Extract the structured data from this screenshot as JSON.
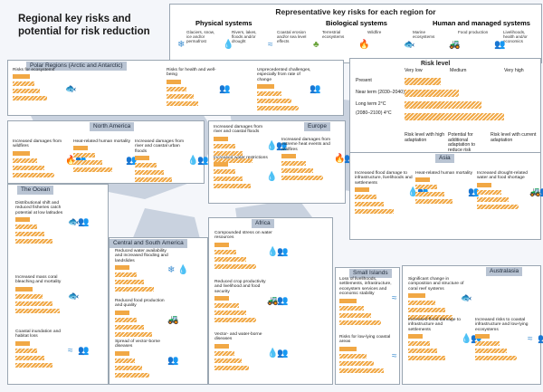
{
  "title": "Regional key risks and potential for risk reduction",
  "legend": {
    "title": "Representative key risks for each region for",
    "groups": [
      {
        "label": "Physical systems",
        "color": "#3f8fd1"
      },
      {
        "label": "Biological systems",
        "color": "#6aa33b"
      },
      {
        "label": "Human and managed systems",
        "color": "#c2102c"
      }
    ],
    "items": [
      {
        "label": "Glaciers, snow, ice and/or permafrost",
        "icon": "snowflake-icon",
        "glyph": "❄",
        "color": "#3f8fd1"
      },
      {
        "label": "Rivers, lakes, floods and/or drought",
        "icon": "droplet-icon",
        "glyph": "💧",
        "color": "#3f8fd1"
      },
      {
        "label": "Coastal erosion and/or sea level effects",
        "icon": "waves-icon",
        "glyph": "≈",
        "color": "#3f8fd1"
      },
      {
        "label": "Terrestrial ecosystems",
        "icon": "tree-icon",
        "glyph": "♣",
        "color": "#6aa33b"
      },
      {
        "label": "Wildfire",
        "icon": "flame-icon",
        "glyph": "🔥",
        "color": "#6aa33b"
      },
      {
        "label": "Marine ecosystems",
        "icon": "fish-icon",
        "glyph": "🐟",
        "color": "#6aa33b"
      },
      {
        "label": "Food production",
        "icon": "tractor-icon",
        "glyph": "🚜",
        "color": "#c2102c"
      },
      {
        "label": "Livelihoods, health and/or economics",
        "icon": "people-icon",
        "glyph": "👥",
        "color": "#c2102c"
      }
    ]
  },
  "risk_level": {
    "title": "Risk level",
    "scale": [
      "Very low",
      "Medium",
      "Very high"
    ],
    "rows": [
      "Present",
      "Near term (2030–2040)",
      "Long term 2°C",
      "(2080–2100) 4°C"
    ],
    "notes": [
      "Risk level with high adaptation",
      "Potential for additional adaptation to reduce risk",
      "Risk level with current adaptation"
    ]
  },
  "regions": [
    {
      "name": "Polar Regions (Arctic and Antarctic)",
      "risks": [
        {
          "label": "Risks for ecosystems",
          "levels": [
            0.35,
            0.45,
            0.55,
            0.7
          ],
          "icons": [
            "fish-icon"
          ]
        },
        {
          "label": "Risks for health and well-being",
          "levels": [
            0.3,
            0.4,
            0.55,
            0.65
          ],
          "icons": [
            "people-icon"
          ]
        },
        {
          "label": "Unprecedented challenges, especially from rate of change",
          "levels": [
            0.35,
            0.5,
            0.7,
            0.85
          ],
          "icons": [
            "people-icon"
          ]
        }
      ]
    },
    {
      "name": "North America",
      "risks": [
        {
          "label": "Increased damages from wildfires",
          "levels": [
            0.35,
            0.5,
            0.65,
            0.85
          ],
          "icons": [
            "flame-icon",
            "people-icon"
          ]
        },
        {
          "label": "Heat-related human mortality",
          "levels": [
            0.3,
            0.45,
            0.6,
            0.8
          ],
          "icons": [
            "people-icon"
          ]
        },
        {
          "label": "Increased damages from river and coastal urban floods",
          "levels": [
            0.3,
            0.45,
            0.6,
            0.75
          ],
          "icons": [
            "droplet-icon",
            "people-icon"
          ]
        }
      ]
    },
    {
      "name": "Europe",
      "risks": [
        {
          "label": "Increased damages from river and coastal floods",
          "levels": [
            0.3,
            0.45,
            0.6,
            0.8
          ],
          "icons": [
            "droplet-icon",
            "people-icon"
          ]
        },
        {
          "label": "Increased water restrictions",
          "levels": [
            0.3,
            0.45,
            0.6,
            0.75
          ],
          "icons": [
            "droplet-icon"
          ]
        },
        {
          "label": "Increased damages from extreme heat events and wildfires",
          "levels": [
            0.3,
            0.5,
            0.65,
            0.85
          ],
          "icons": [
            "flame-icon",
            "people-icon"
          ]
        }
      ]
    },
    {
      "name": "Asia",
      "risks": [
        {
          "label": "Increased flood damage to infrastructure, livelihoods and settlements",
          "levels": [
            0.3,
            0.45,
            0.6,
            0.8
          ],
          "icons": [
            "droplet-icon",
            "people-icon"
          ]
        },
        {
          "label": "Heat-related human mortality",
          "levels": [
            0.3,
            0.45,
            0.6,
            0.75
          ],
          "icons": [
            "people-icon"
          ]
        },
        {
          "label": "Increased drought-related water and food shortage",
          "levels": [
            0.3,
            0.5,
            0.65,
            0.85
          ],
          "icons": [
            "tractor-icon",
            "people-icon"
          ]
        }
      ]
    },
    {
      "name": "The Ocean",
      "risks": [
        {
          "label": "Distributional shift and reduced fisheries catch potential at low latitudes",
          "levels": [
            0.3,
            0.45,
            0.6,
            0.75
          ],
          "icons": [
            "fish-icon",
            "people-icon"
          ]
        },
        {
          "label": "Increased mass coral bleaching and mortality",
          "levels": [
            0.35,
            0.55,
            0.75,
            0.9
          ],
          "icons": [
            "fish-icon"
          ]
        },
        {
          "label": "Coastal inundation and habitat loss",
          "levels": [
            0.3,
            0.45,
            0.6,
            0.75
          ],
          "icons": [
            "waves-icon",
            "people-icon"
          ]
        }
      ]
    },
    {
      "name": "Central and South America",
      "risks": [
        {
          "label": "Reduced water availability and increased flooding and landslides",
          "levels": [
            0.3,
            0.45,
            0.6,
            0.8
          ],
          "icons": [
            "snowflake-icon",
            "droplet-icon"
          ]
        },
        {
          "label": "Reduced food production and quality",
          "levels": [
            0.3,
            0.45,
            0.6,
            0.75
          ],
          "icons": [
            "tractor-icon"
          ]
        },
        {
          "label": "Spread of vector-borne diseases",
          "levels": [
            0.3,
            0.4,
            0.55,
            0.7
          ],
          "icons": [
            "people-icon"
          ]
        }
      ]
    },
    {
      "name": "Africa",
      "risks": [
        {
          "label": "Compounded stress on water resources",
          "levels": [
            0.3,
            0.45,
            0.65,
            0.85
          ],
          "icons": [
            "droplet-icon",
            "people-icon"
          ]
        },
        {
          "label": "Reduced crop productivity and livelihood and food security",
          "levels": [
            0.3,
            0.5,
            0.65,
            0.85
          ],
          "icons": [
            "tractor-icon",
            "people-icon"
          ]
        },
        {
          "label": "Vector- and water-borne diseases",
          "levels": [
            0.3,
            0.4,
            0.55,
            0.7
          ],
          "icons": [
            "droplet-icon",
            "people-icon"
          ]
        }
      ]
    },
    {
      "name": "Small Islands",
      "risks": [
        {
          "label": "Loss of livelihoods, settlements, infrastructure, ecosystem services and economic stability",
          "levels": [
            0.35,
            0.5,
            0.65,
            0.85
          ],
          "icons": [
            "waves-icon",
            "people-icon"
          ]
        },
        {
          "label": "Risks for low-lying coastal areas",
          "levels": [
            0.35,
            0.55,
            0.7,
            0.9
          ],
          "icons": [
            "waves-icon",
            "people-icon"
          ]
        }
      ]
    },
    {
      "name": "Australasia",
      "risks": [
        {
          "label": "Significant change in composition and structure of coral reef systems",
          "levels": [
            0.35,
            0.55,
            0.75,
            0.9
          ],
          "icons": [
            "fish-icon"
          ]
        },
        {
          "label": "Increased flood damage to infrastructure and settlements",
          "levels": [
            0.3,
            0.45,
            0.6,
            0.75
          ],
          "icons": [
            "droplet-icon",
            "people-icon"
          ]
        },
        {
          "label": "Increased risks to coastal infrastructure and low-lying ecosystems",
          "levels": [
            0.3,
            0.5,
            0.65,
            0.85
          ],
          "icons": [
            "waves-icon",
            "people-icon"
          ]
        }
      ]
    }
  ]
}
